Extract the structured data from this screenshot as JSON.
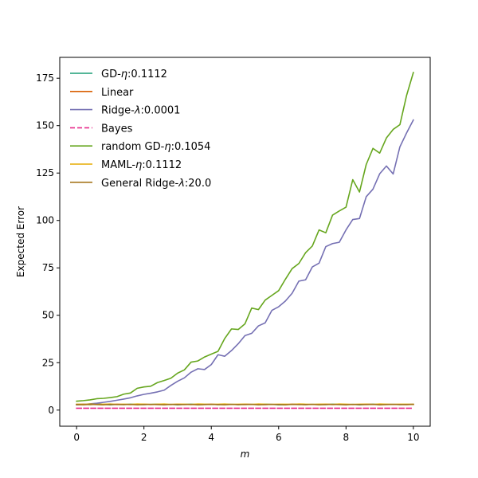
{
  "chart_data": {
    "type": "line",
    "title": "",
    "xlabel": "m",
    "ylabel": "Expected Error",
    "xlim": [
      -0.5,
      10.5
    ],
    "ylim": [
      -8.5,
      186
    ],
    "xticks": [
      0,
      2,
      4,
      6,
      8,
      10
    ],
    "yticks": [
      0,
      25,
      50,
      75,
      100,
      125,
      150,
      175
    ],
    "grid": false,
    "legend_position": "top-left",
    "x": [
      0,
      0.2,
      0.4,
      0.6,
      0.8,
      1.0,
      1.2,
      1.4,
      1.6,
      1.8,
      2.0,
      2.2,
      2.4,
      2.6,
      2.8,
      3.0,
      3.2,
      3.4,
      3.6,
      3.8,
      4.0,
      4.2,
      4.4,
      4.6,
      4.8,
      5.0,
      5.2,
      5.4,
      5.6,
      5.8,
      6.0,
      6.2,
      6.4,
      6.6,
      6.8,
      7.0,
      7.2,
      7.4,
      7.6,
      7.8,
      8.0,
      8.2,
      8.4,
      8.6,
      8.8,
      9.0,
      9.2,
      9.4,
      9.6,
      9.8,
      10.0
    ],
    "series": [
      {
        "name": "GD-η:0.1112",
        "label_main": "GD-",
        "label_symbol": "η",
        "label_value": ":0.1112",
        "color": "#1b9e77",
        "dash": "solid",
        "values": [
          3.0,
          3.0,
          2.9,
          3.1,
          3.0,
          2.8,
          3.0,
          2.9,
          3.1,
          3.0,
          2.9,
          3.0,
          3.1,
          2.9,
          3.0,
          2.8,
          3.0,
          3.1,
          2.9,
          3.0,
          3.0,
          2.9,
          3.1,
          3.0,
          2.9,
          3.0,
          3.0,
          2.9,
          3.1,
          3.0,
          2.8,
          2.9,
          3.0,
          3.1,
          2.9,
          3.0,
          3.0,
          2.9,
          3.1,
          3.0,
          2.9,
          3.0,
          2.8,
          3.0,
          3.1,
          2.9,
          3.0,
          3.0,
          2.9,
          3.0,
          3.0
        ]
      },
      {
        "name": "Linear",
        "label_main": "Linear",
        "label_symbol": "",
        "label_value": "",
        "color": "#d95f02",
        "dash": "solid",
        "values": [
          3.0,
          3.1,
          2.9,
          3.0,
          3.0,
          2.9,
          3.1,
          3.0,
          2.9,
          3.0,
          3.1,
          2.9,
          3.0,
          3.0,
          2.9,
          3.1,
          3.0,
          2.9,
          3.0,
          3.0,
          3.1,
          2.9,
          3.0,
          3.0,
          2.9,
          3.1,
          3.0,
          3.0,
          2.9,
          3.0,
          3.0,
          2.9,
          3.1,
          3.0,
          2.9,
          3.0,
          3.0,
          3.1,
          2.9,
          3.0,
          3.0,
          2.9,
          3.0,
          3.1,
          3.0,
          2.9,
          3.0,
          3.0,
          3.0,
          2.9,
          3.0
        ]
      },
      {
        "name": "Ridge-λ:0.0001",
        "label_main": "Ridge-",
        "label_symbol": "λ",
        "label_value": ":0.0001",
        "color": "#7570b3",
        "dash": "solid",
        "values": [
          2.8,
          3.0,
          3.3,
          3.6,
          4.1,
          4.6,
          5.2,
          5.8,
          6.5,
          7.5,
          8.3,
          8.9,
          9.6,
          10.5,
          13.0,
          15.2,
          17.0,
          20.0,
          21.8,
          21.4,
          24.0,
          29.2,
          28.4,
          31.4,
          35.0,
          39.3,
          40.5,
          44.4,
          46.0,
          52.6,
          54.5,
          57.5,
          61.6,
          68.0,
          68.7,
          75.5,
          77.5,
          86.2,
          87.8,
          88.5,
          95.0,
          100.5,
          101.0,
          112.5,
          116.5,
          124.6,
          128.7,
          124.5,
          138.8,
          146.2,
          153.0
        ]
      },
      {
        "name": "Bayes",
        "label_main": "Bayes",
        "label_symbol": "",
        "label_value": "",
        "color": "#e7298a",
        "dash": "dashed",
        "values": [
          1.0,
          1.0,
          1.0,
          1.0,
          1.0,
          1.0,
          1.0,
          1.0,
          1.0,
          1.0,
          1.0,
          1.0,
          1.0,
          1.0,
          1.0,
          1.0,
          1.0,
          1.0,
          1.0,
          1.0,
          1.0,
          1.0,
          1.0,
          1.0,
          1.0,
          1.0,
          1.0,
          1.0,
          1.0,
          1.0,
          1.0,
          1.0,
          1.0,
          1.0,
          1.0,
          1.0,
          1.0,
          1.0,
          1.0,
          1.0,
          1.0,
          1.0,
          1.0,
          1.0,
          1.0,
          1.0,
          1.0,
          1.0,
          1.0,
          1.0,
          1.0
        ]
      },
      {
        "name": "random GD-η:0.1054",
        "label_main": "random GD-",
        "label_symbol": "η",
        "label_value": ":0.1054",
        "color": "#66a61e",
        "dash": "solid",
        "values": [
          4.7,
          5.0,
          5.4,
          6.0,
          6.2,
          6.6,
          7.1,
          8.4,
          9.0,
          11.5,
          12.2,
          12.6,
          14.5,
          15.6,
          16.8,
          19.5,
          21.2,
          25.3,
          25.9,
          28.0,
          29.5,
          31.0,
          37.8,
          42.8,
          42.5,
          45.5,
          53.8,
          53.0,
          58.0,
          60.5,
          63.0,
          69.0,
          74.6,
          77.3,
          83.0,
          86.5,
          95.0,
          93.5,
          102.8,
          105.0,
          107.0,
          121.5,
          115.0,
          129.5,
          138.0,
          135.5,
          143.5,
          148.0,
          150.5,
          166.0,
          178.0
        ]
      },
      {
        "name": "MAML-η:0.1112",
        "label_main": "MAML-",
        "label_symbol": "η",
        "label_value": ":0.1112",
        "color": "#e6ab02",
        "dash": "solid",
        "values": [
          3.1,
          3.0,
          3.2,
          3.0,
          3.1,
          3.2,
          3.0,
          3.1,
          3.0,
          3.2,
          3.1,
          3.0,
          3.1,
          3.2,
          3.0,
          3.1,
          3.1,
          3.0,
          3.2,
          3.1,
          3.0,
          3.1,
          3.2,
          3.0,
          3.1,
          3.1,
          3.0,
          3.2,
          3.1,
          3.0,
          3.1,
          3.1,
          3.0,
          3.2,
          3.1,
          3.0,
          3.1,
          3.1,
          3.0,
          3.2,
          3.1,
          3.0,
          3.1,
          3.1,
          3.0,
          3.2,
          3.1,
          3.0,
          3.1,
          3.1,
          3.0
        ]
      },
      {
        "name": "General Ridge-λ:20.0",
        "label_main": "General Ridge-",
        "label_symbol": "λ",
        "label_value": ":20.0",
        "color": "#a6761d",
        "dash": "solid",
        "values": [
          2.9,
          2.8,
          3.0,
          2.9,
          2.8,
          3.0,
          2.9,
          2.9,
          3.0,
          2.8,
          2.9,
          3.0,
          2.9,
          2.8,
          3.0,
          2.9,
          2.9,
          3.0,
          2.8,
          2.9,
          3.0,
          2.9,
          2.8,
          3.0,
          2.9,
          2.9,
          3.0,
          2.8,
          2.9,
          3.0,
          2.9,
          2.8,
          3.0,
          2.9,
          2.9,
          3.0,
          2.8,
          2.9,
          3.0,
          2.9,
          2.8,
          3.0,
          2.9,
          2.9,
          3.0,
          2.8,
          2.9,
          3.0,
          2.9,
          2.9,
          3.0
        ]
      }
    ]
  }
}
